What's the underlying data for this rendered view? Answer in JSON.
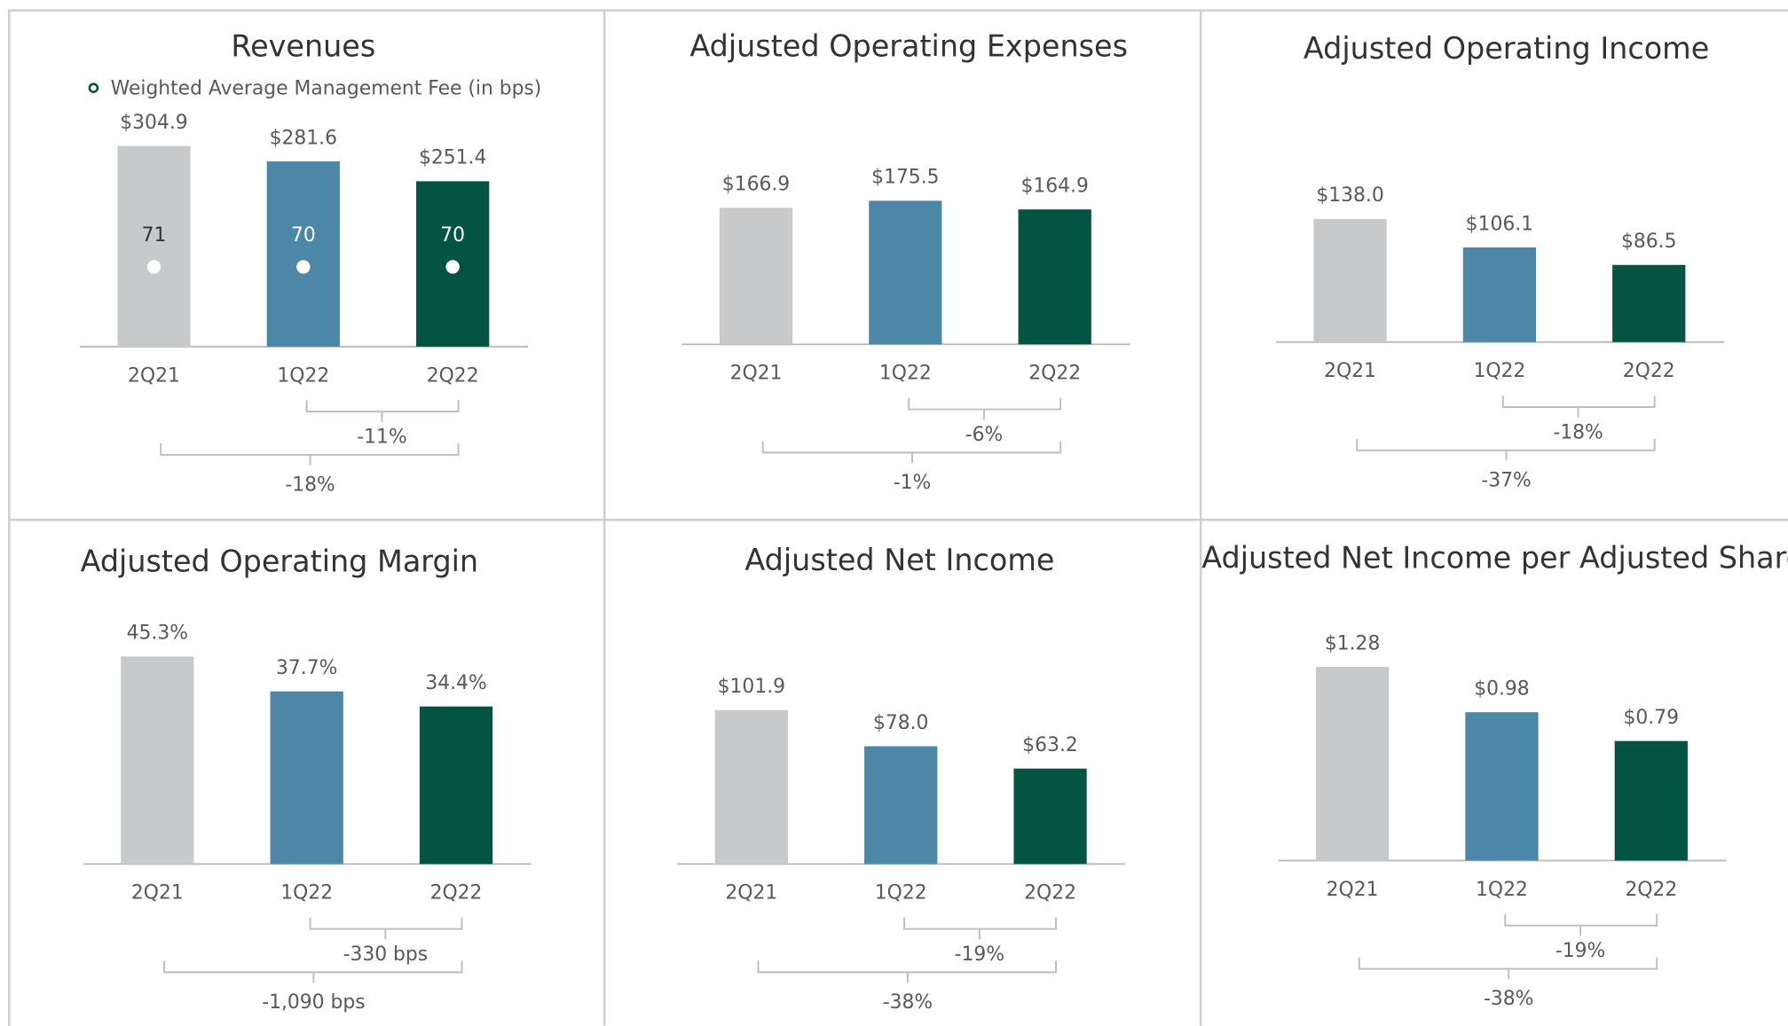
{
  "chart_data": [
    {
      "type": "bar",
      "title": "Revenues",
      "categories": [
        "2Q21",
        "1Q22",
        "2Q22"
      ],
      "values": [
        304.9,
        281.6,
        251.4
      ],
      "value_labels": [
        "$304.9",
        "$281.6",
        "$251.4"
      ],
      "colors": [
        "#c8c9cb",
        "#4c87a8",
        "#035442"
      ],
      "comparisons": [
        "-11%",
        "-18%"
      ],
      "fee_series": {
        "name": "Weighted Average Management Fee (in bps)",
        "values": [
          71,
          70,
          70
        ]
      }
    },
    {
      "type": "bar",
      "title": "Adjusted Operating Expenses",
      "categories": [
        "2Q21",
        "1Q22",
        "2Q22"
      ],
      "values": [
        166.9,
        175.5,
        164.9
      ],
      "value_labels": [
        "$166.9",
        "$175.5",
        "$164.9"
      ],
      "colors": [
        "#c8c9cb",
        "#4c87a8",
        "#035442"
      ],
      "comparisons": [
        "-6%",
        "-1%"
      ]
    },
    {
      "type": "bar",
      "title": "Adjusted Operating Income",
      "categories": [
        "2Q21",
        "1Q22",
        "2Q22"
      ],
      "values": [
        138.0,
        106.1,
        86.5
      ],
      "value_labels": [
        "$138.0",
        "$106.1",
        "$86.5"
      ],
      "colors": [
        "#c8c9cb",
        "#4c87a8",
        "#035442"
      ],
      "comparisons": [
        "-18%",
        "-37%"
      ]
    },
    {
      "type": "bar",
      "title": "Adjusted Operating Margin",
      "categories": [
        "2Q21",
        "1Q22",
        "2Q22"
      ],
      "values": [
        45.3,
        37.7,
        34.4
      ],
      "value_labels": [
        "45.3%",
        "37.7%",
        "34.4%"
      ],
      "colors": [
        "#c8c9cb",
        "#4c87a8",
        "#035442"
      ],
      "comparisons": [
        "-330 bps",
        "-1,090 bps"
      ]
    },
    {
      "type": "bar",
      "title": "Adjusted Net Income",
      "categories": [
        "2Q21",
        "1Q22",
        "2Q22"
      ],
      "values": [
        101.9,
        78.0,
        63.2
      ],
      "value_labels": [
        "$101.9",
        "$78.0",
        "$63.2"
      ],
      "colors": [
        "#c8c9cb",
        "#4c87a8",
        "#035442"
      ],
      "comparisons": [
        "-19%",
        "-38%"
      ]
    },
    {
      "type": "bar",
      "title": "Adjusted Net Income per Adjusted Share",
      "categories": [
        "2Q21",
        "1Q22",
        "2Q22"
      ],
      "values": [
        1.28,
        0.98,
        0.79
      ],
      "value_labels": [
        "$1.28",
        "$0.98",
        "$0.79"
      ],
      "colors": [
        "#c8c9cb",
        "#4c87a8",
        "#035442"
      ],
      "comparisons": [
        "-19%",
        "-38%"
      ]
    }
  ]
}
